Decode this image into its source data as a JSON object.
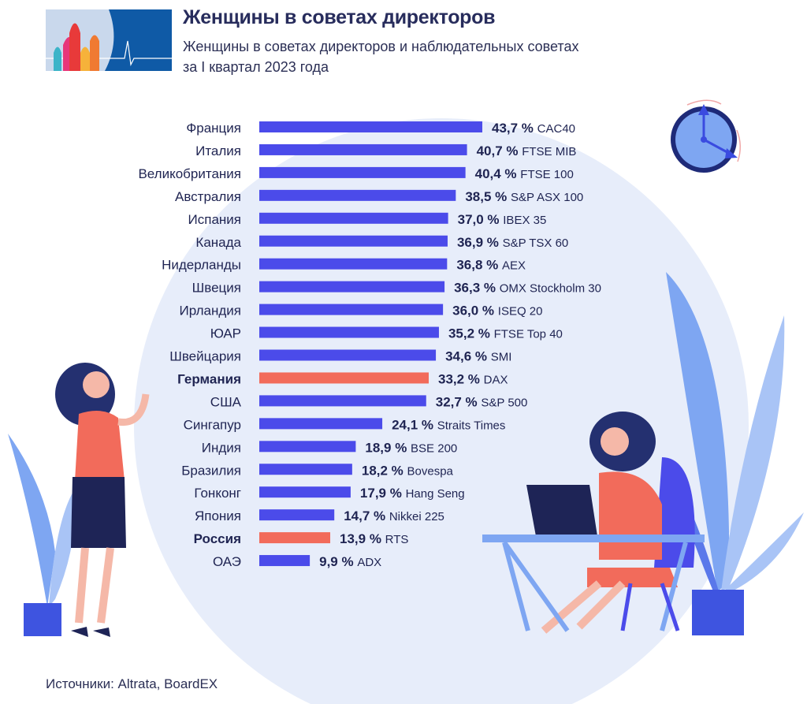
{
  "header": {
    "title": "Женщины в советах директоров",
    "subtitle_line1": "Женщины в советах директоров и наблюдательных советах",
    "subtitle_line2": "за I квартал 2023 года"
  },
  "source": "Источники: Altrata, BoardEX",
  "colors": {
    "bar": "#4b4bea",
    "highlight": "#f26b5b",
    "text": "#1f2452",
    "circle": "#e6ecfa"
  },
  "chart_data": {
    "type": "bar",
    "orientation": "horizontal",
    "title": "Женщины в советах директоров",
    "unit": "%",
    "xlim": [
      0,
      50
    ],
    "grid": false,
    "categories": [
      "Франция",
      "Италия",
      "Великобритания",
      "Австралия",
      "Испания",
      "Канада",
      "Нидерланды",
      "Швеция",
      "Ирландия",
      "ЮАР",
      "Швейцария",
      "Германия",
      "США",
      "Сингапур",
      "Индия",
      "Бразилия",
      "Гонконг",
      "Япония",
      "Россия",
      "ОАЭ"
    ],
    "values": [
      43.7,
      40.7,
      40.4,
      38.5,
      37.0,
      36.9,
      36.8,
      36.3,
      36.0,
      35.2,
      34.6,
      33.2,
      32.7,
      24.1,
      18.9,
      18.2,
      17.9,
      14.7,
      13.9,
      9.9
    ],
    "value_labels": [
      "43,7 %",
      "40,7 %",
      "40,4 %",
      "38,5 %",
      "37,0 %",
      "36,9 %",
      "36,8 %",
      "36,3 %",
      "36,0 %",
      "35,2 %",
      "34,6 %",
      "33,2 %",
      "32,7 %",
      "24,1 %",
      "18,9 %",
      "18,2 %",
      "17,9 %",
      "14,7 %",
      "13,9 %",
      "9,9 %"
    ],
    "indices": [
      "CAC40",
      "FTSE MIB",
      "FTSE 100",
      "S&P ASX 100",
      "IBEX 35",
      "S&P TSX 60",
      "AEX",
      "OMX Stockholm 30",
      "ISEQ 20",
      "FTSE Top 40",
      "SMI",
      "DAX",
      "S&P 500",
      "Straits Times",
      "BSE 200",
      "Bovespa",
      "Hang Seng",
      "Nikkei 225",
      "RTS",
      "ADX"
    ],
    "highlighted": [
      "Германия",
      "Россия"
    ]
  }
}
